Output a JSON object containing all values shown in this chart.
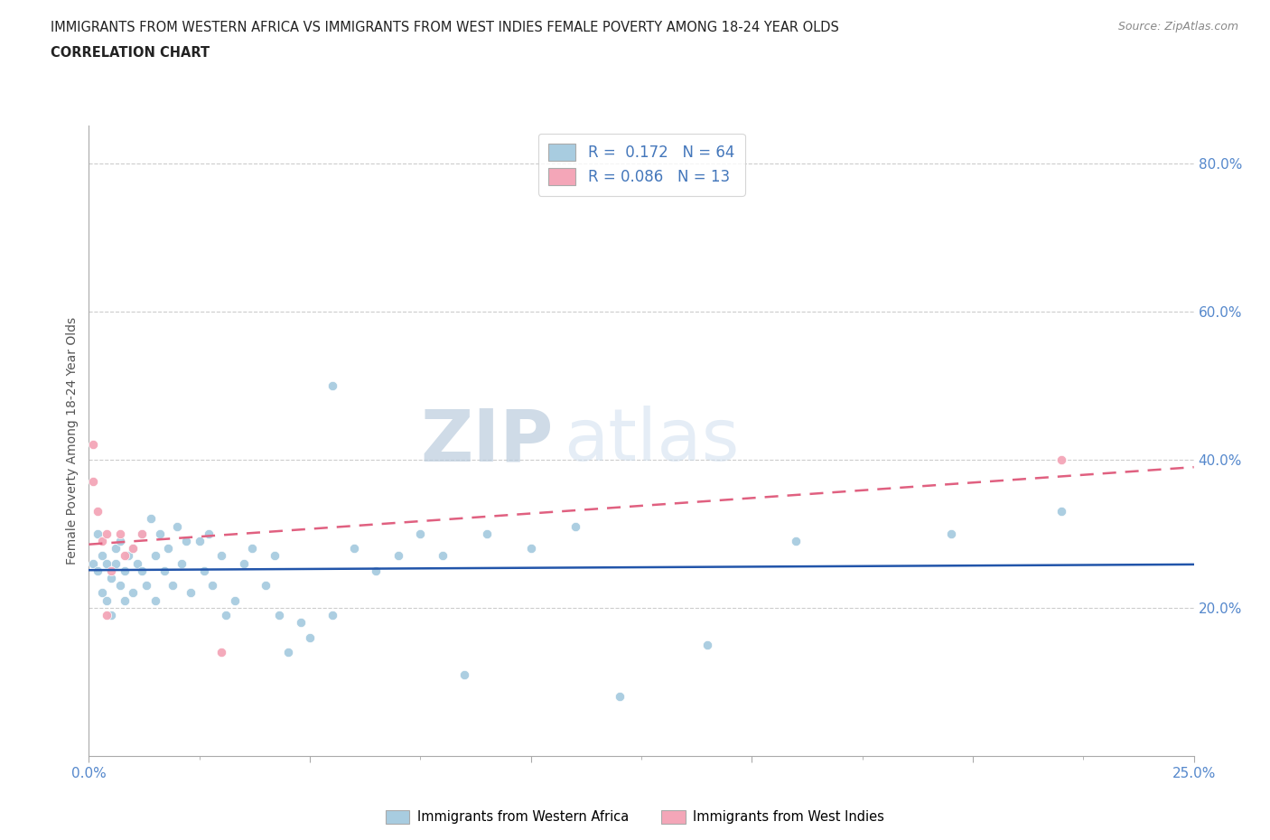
{
  "title_line1": "IMMIGRANTS FROM WESTERN AFRICA VS IMMIGRANTS FROM WEST INDIES FEMALE POVERTY AMONG 18-24 YEAR OLDS",
  "title_line2": "CORRELATION CHART",
  "source_text": "Source: ZipAtlas.com",
  "ylabel": "Female Poverty Among 18-24 Year Olds",
  "xlim": [
    0,
    0.25
  ],
  "ylim": [
    0,
    0.85
  ],
  "xticks": [
    0.0,
    0.05,
    0.1,
    0.15,
    0.2,
    0.25
  ],
  "yticks": [
    0.2,
    0.4,
    0.6,
    0.8
  ],
  "color_blue": "#a8cce0",
  "color_pink": "#f4a6b8",
  "color_blue_line": "#2255aa",
  "color_pink_line": "#e06080",
  "R_blue": 0.172,
  "N_blue": 64,
  "R_pink": 0.086,
  "N_pink": 13,
  "watermark_zip": "ZIP",
  "watermark_atlas": "atlas",
  "legend_label_blue": "Immigrants from Western Africa",
  "legend_label_pink": "Immigrants from West Indies",
  "blue_x": [
    0.001,
    0.002,
    0.002,
    0.003,
    0.003,
    0.004,
    0.004,
    0.005,
    0.005,
    0.006,
    0.006,
    0.007,
    0.007,
    0.008,
    0.008,
    0.009,
    0.01,
    0.01,
    0.011,
    0.012,
    0.012,
    0.013,
    0.014,
    0.015,
    0.015,
    0.016,
    0.017,
    0.018,
    0.019,
    0.02,
    0.021,
    0.022,
    0.023,
    0.025,
    0.026,
    0.027,
    0.028,
    0.03,
    0.031,
    0.033,
    0.035,
    0.037,
    0.04,
    0.042,
    0.043,
    0.045,
    0.048,
    0.05,
    0.055,
    0.055,
    0.06,
    0.065,
    0.07,
    0.075,
    0.08,
    0.085,
    0.09,
    0.1,
    0.11,
    0.12,
    0.14,
    0.16,
    0.195,
    0.22
  ],
  "blue_y": [
    0.26,
    0.25,
    0.3,
    0.22,
    0.27,
    0.21,
    0.26,
    0.24,
    0.19,
    0.26,
    0.28,
    0.23,
    0.29,
    0.25,
    0.21,
    0.27,
    0.22,
    0.28,
    0.26,
    0.25,
    0.3,
    0.23,
    0.32,
    0.27,
    0.21,
    0.3,
    0.25,
    0.28,
    0.23,
    0.31,
    0.26,
    0.29,
    0.22,
    0.29,
    0.25,
    0.3,
    0.23,
    0.27,
    0.19,
    0.21,
    0.26,
    0.28,
    0.23,
    0.27,
    0.19,
    0.14,
    0.18,
    0.16,
    0.5,
    0.19,
    0.28,
    0.25,
    0.27,
    0.3,
    0.27,
    0.11,
    0.3,
    0.28,
    0.31,
    0.08,
    0.15,
    0.29,
    0.3,
    0.33
  ],
  "pink_x": [
    0.001,
    0.001,
    0.002,
    0.003,
    0.004,
    0.004,
    0.005,
    0.007,
    0.008,
    0.01,
    0.012,
    0.03,
    0.22
  ],
  "pink_y": [
    0.42,
    0.37,
    0.33,
    0.29,
    0.3,
    0.19,
    0.25,
    0.3,
    0.27,
    0.28,
    0.3,
    0.14,
    0.4
  ]
}
